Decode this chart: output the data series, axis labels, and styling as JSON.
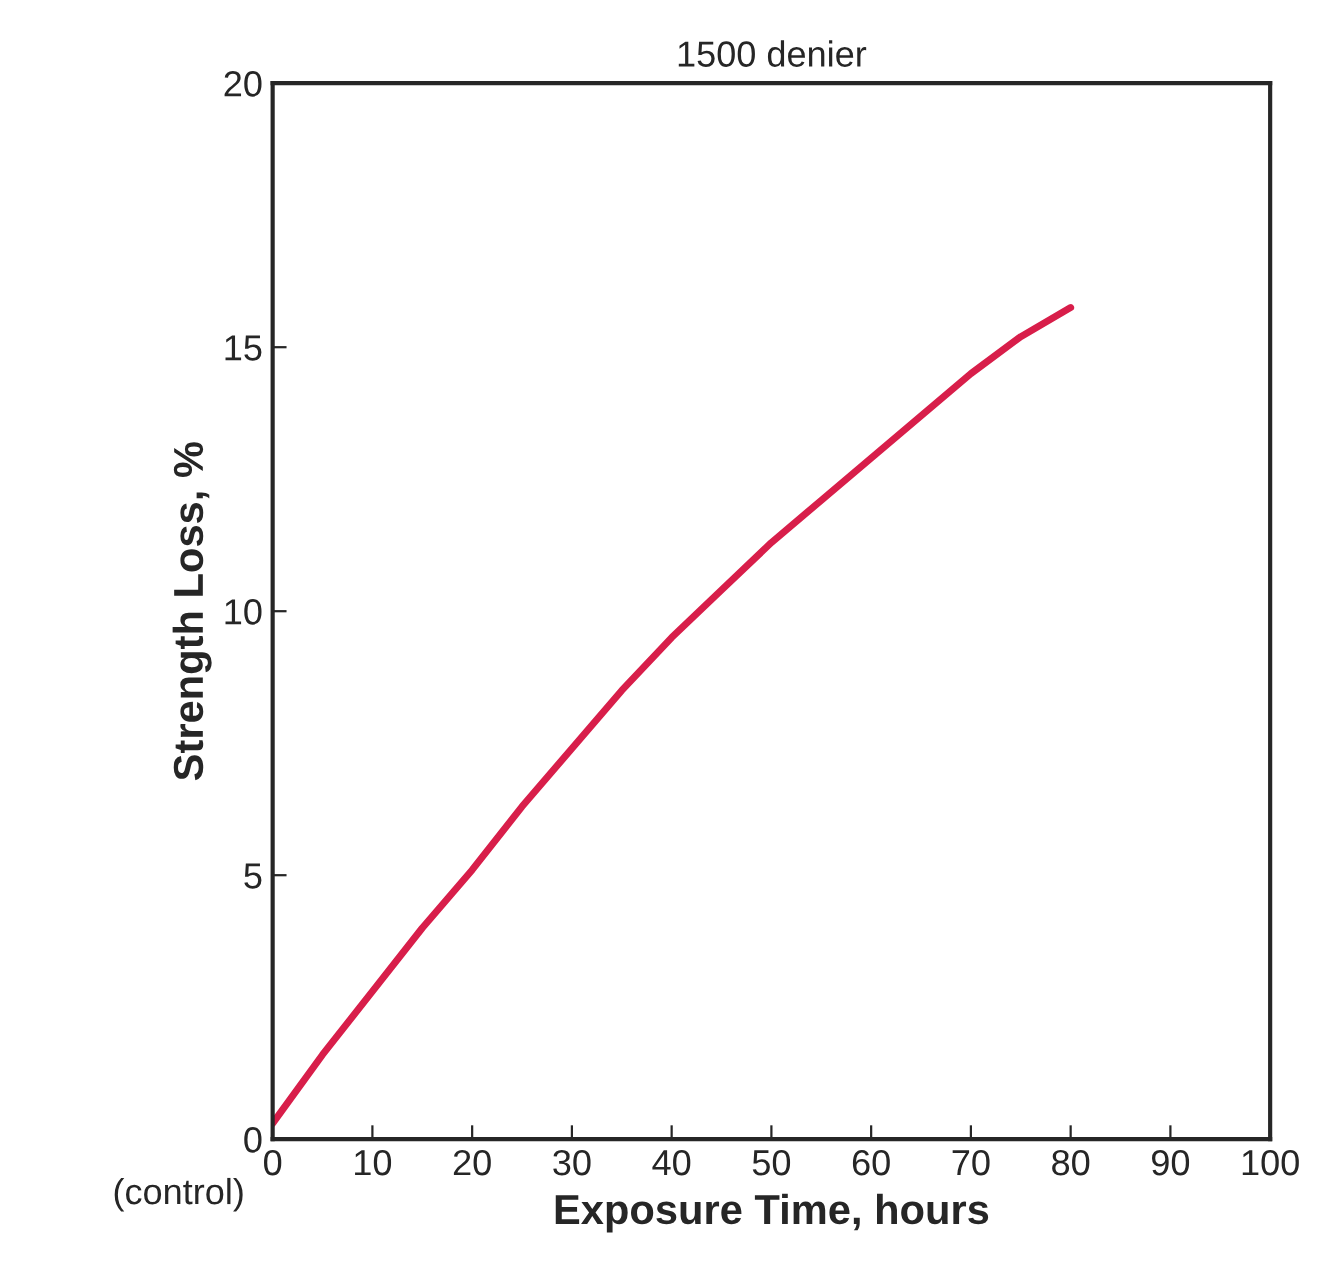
{
  "chart_data": {
    "type": "line",
    "title": "1500 denier",
    "xlabel": "Exposure Time, hours",
    "ylabel": "Strength Loss, %",
    "x": [
      0,
      5,
      10,
      15,
      20,
      25,
      30,
      35,
      40,
      45,
      50,
      55,
      60,
      65,
      70,
      75,
      80
    ],
    "series": [
      {
        "color": "#d81e4a",
        "values": [
          0.3,
          1.6,
          2.8,
          4.0,
          5.1,
          6.3,
          7.4,
          8.5,
          9.5,
          10.4,
          11.3,
          12.1,
          12.9,
          13.7,
          14.5,
          15.2,
          15.75
        ]
      }
    ],
    "xlim": [
      0,
      100
    ],
    "xticks": [
      0,
      10,
      20,
      30,
      40,
      50,
      60,
      70,
      80,
      90,
      100
    ],
    "ylim": [
      0,
      20
    ],
    "yticks": [
      0,
      5,
      10,
      15,
      20
    ],
    "annotations": [
      "(control)"
    ],
    "grid": false,
    "legend": false,
    "marker": "none",
    "line_style": "solid"
  }
}
